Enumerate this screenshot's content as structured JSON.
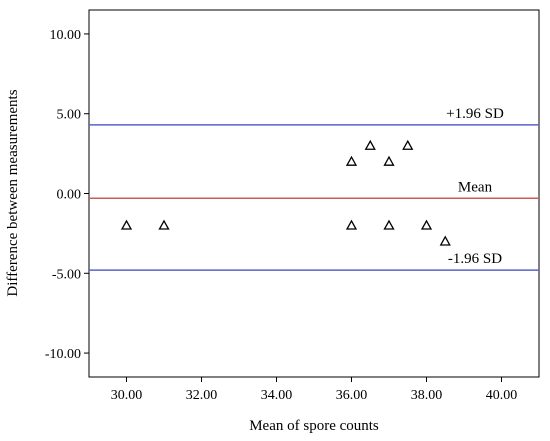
{
  "chart_data": {
    "type": "scatter",
    "title": "",
    "xlabel": "Mean of spore counts",
    "ylabel": "Difference between measurements",
    "xlim": [
      29,
      41
    ],
    "ylim": [
      -11.5,
      11.5
    ],
    "x_ticks": [
      "30.00",
      "32.00",
      "34.00",
      "36.00",
      "38.00",
      "40.00"
    ],
    "y_ticks": [
      "10.00",
      "5.00",
      "0.00",
      "-5.00",
      "-10.00"
    ],
    "x_tick_values": [
      30,
      32,
      34,
      36,
      38,
      40
    ],
    "y_tick_values": [
      10,
      5,
      0,
      -5,
      -10
    ],
    "grid": false,
    "marker": "open-triangle",
    "points": [
      {
        "x": 30.0,
        "y": -2.0
      },
      {
        "x": 31.0,
        "y": -2.0
      },
      {
        "x": 36.0,
        "y": 2.0
      },
      {
        "x": 36.5,
        "y": 3.0
      },
      {
        "x": 37.0,
        "y": 2.0
      },
      {
        "x": 37.5,
        "y": 3.0
      },
      {
        "x": 36.0,
        "y": -2.0
      },
      {
        "x": 37.0,
        "y": -2.0
      },
      {
        "x": 38.0,
        "y": -2.0
      },
      {
        "x": 38.5,
        "y": -3.0
      }
    ],
    "reference_lines": [
      {
        "name": "upper-limit",
        "label": "+1.96 SD",
        "y": 4.3,
        "color": "#5a62c8"
      },
      {
        "name": "mean",
        "label": "Mean",
        "y": -0.3,
        "color": "#d05a5a"
      },
      {
        "name": "lower-limit",
        "label": "-1.96 SD",
        "y": -4.8,
        "color": "#5a62c8"
      }
    ]
  }
}
